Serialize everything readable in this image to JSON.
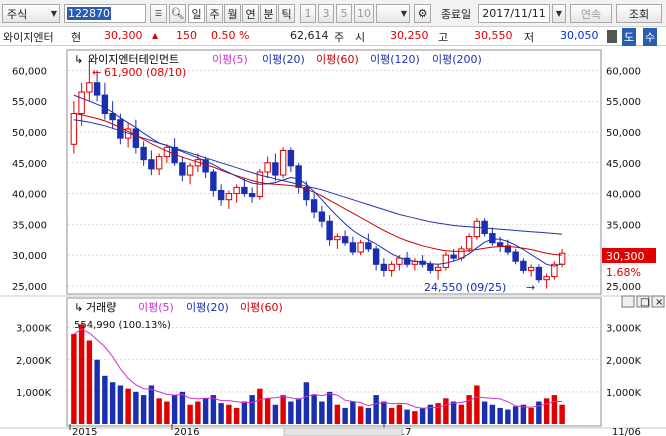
{
  "toolbar": {
    "market": "주식",
    "code": "122870",
    "period_buttons": [
      "일",
      "주",
      "월",
      "연",
      "분",
      "틱"
    ],
    "interval_buttons": [
      "1",
      "3",
      "5",
      "10"
    ],
    "close_price_label": "종료일",
    "date": "2017/11/11",
    "continuous_label": "연속",
    "search_label": "조회"
  },
  "quote": {
    "name": "와이지엔터",
    "current_label": "현",
    "price": "30,300",
    "change": "150",
    "change_pct": "0.50 %",
    "volume": "62,614",
    "volume_unit": "주",
    "open_label": "시",
    "open": "30,250",
    "high_label": "고",
    "high": "30,550",
    "low_label": "저",
    "low": "30,050",
    "side_buttons": [
      "도",
      "수"
    ]
  },
  "price_legend": {
    "symbol": "와이지엔터테인먼트",
    "ma5": "이평(5)",
    "ma20": "이평(20)",
    "ma60": "이평(60)",
    "ma120": "이평(120)",
    "ma200": "이평(200)"
  },
  "volume_legend": {
    "title": "거래량",
    "ma5": "이평(5)",
    "ma20": "이평(20)",
    "ma60": "이평(60)",
    "max_note": "554,990 (100.13%)"
  },
  "annotations": {
    "high": "61,900 (08/10)",
    "low": "24,550 (09/25)",
    "last_price": "30,300",
    "last_change": "1.68%"
  },
  "colors": {
    "up": "#e00000",
    "down": "#1a2fb0",
    "ma5": "#cc33cc",
    "ma20": "#1a2fb0",
    "ma60": "#cc0000",
    "ma120": "#2233aa",
    "ma200": "#2233aa"
  },
  "chart_data": {
    "type": "candlestick",
    "price_axis": {
      "ticks": [
        "60,000",
        "55,000",
        "50,000",
        "45,000",
        "40,000",
        "35,000",
        "30,000",
        "25,000"
      ],
      "ylim": [
        24000,
        63000
      ]
    },
    "volume_axis": {
      "ticks": [
        "3,000K",
        "2,000K",
        "1,000K"
      ],
      "ylim": [
        0,
        3300000
      ]
    },
    "x_labels": [
      "2015",
      "2016",
      "2017",
      "11/06"
    ],
    "candles": [
      [
        48000,
        55000,
        46500,
        53000
      ],
      [
        53000,
        58000,
        51000,
        56500
      ],
      [
        56500,
        61900,
        55000,
        58000
      ],
      [
        58000,
        60000,
        55000,
        56000
      ],
      [
        56000,
        58000,
        52000,
        53000
      ],
      [
        53000,
        55000,
        50500,
        52000
      ],
      [
        52000,
        53000,
        48000,
        49000
      ],
      [
        49000,
        51500,
        47500,
        50500
      ],
      [
        50500,
        52000,
        46500,
        47500
      ],
      [
        47500,
        48500,
        44500,
        45500
      ],
      [
        45500,
        47000,
        43000,
        44000
      ],
      [
        44000,
        46500,
        43000,
        46000
      ],
      [
        46000,
        48000,
        45000,
        47500
      ],
      [
        47500,
        49000,
        44500,
        45000
      ],
      [
        45000,
        46000,
        42000,
        43000
      ],
      [
        43000,
        45000,
        41500,
        44500
      ],
      [
        44500,
        46500,
        43500,
        45500
      ],
      [
        45500,
        46000,
        42500,
        43500
      ],
      [
        43500,
        44000,
        39500,
        40500
      ],
      [
        40500,
        41500,
        38000,
        39000
      ],
      [
        39000,
        40500,
        37500,
        40000
      ],
      [
        40000,
        41500,
        38500,
        41000
      ],
      [
        41000,
        42500,
        39500,
        40000
      ],
      [
        40000,
        41000,
        38500,
        39500
      ],
      [
        39500,
        44000,
        39000,
        43500
      ],
      [
        43500,
        46000,
        42500,
        45000
      ],
      [
        45000,
        46500,
        42000,
        43000
      ],
      [
        43000,
        47500,
        42500,
        47000
      ],
      [
        47000,
        47500,
        43500,
        44500
      ],
      [
        44500,
        45000,
        40000,
        41000
      ],
      [
        41000,
        42000,
        38000,
        39000
      ],
      [
        39000,
        40000,
        36000,
        37000
      ],
      [
        37000,
        38000,
        34500,
        35500
      ],
      [
        35500,
        36500,
        31500,
        32500
      ],
      [
        32500,
        33500,
        31000,
        33000
      ],
      [
        33000,
        34000,
        31500,
        32000
      ],
      [
        32000,
        33000,
        30000,
        30500
      ],
      [
        30500,
        32500,
        30000,
        32000
      ],
      [
        32000,
        33500,
        30500,
        31000
      ],
      [
        31000,
        31500,
        27500,
        28500
      ],
      [
        28500,
        29500,
        26500,
        27500
      ],
      [
        27500,
        29000,
        26500,
        28500
      ],
      [
        28500,
        30000,
        27500,
        29500
      ],
      [
        29500,
        30500,
        28000,
        28500
      ],
      [
        28500,
        29500,
        27500,
        29000
      ],
      [
        29000,
        30000,
        28000,
        28500
      ],
      [
        28500,
        29000,
        27000,
        27500
      ],
      [
        27500,
        28500,
        26000,
        28000
      ],
      [
        28000,
        30500,
        27500,
        30000
      ],
      [
        30000,
        31000,
        29000,
        29500
      ],
      [
        29500,
        31500,
        29000,
        31000
      ],
      [
        31000,
        33500,
        30500,
        33000
      ],
      [
        33000,
        36000,
        32500,
        35500
      ],
      [
        35500,
        36000,
        33000,
        33500
      ],
      [
        33500,
        34500,
        31500,
        32000
      ],
      [
        32000,
        33000,
        30500,
        31500
      ],
      [
        31500,
        32500,
        30000,
        30500
      ],
      [
        30500,
        31000,
        28500,
        29000
      ],
      [
        29000,
        29500,
        27000,
        27500
      ],
      [
        27500,
        28500,
        26500,
        28000
      ],
      [
        28000,
        28500,
        25500,
        26000
      ],
      [
        26000,
        27000,
        24550,
        26500
      ],
      [
        26500,
        29000,
        26000,
        28500
      ],
      [
        28500,
        31000,
        28000,
        30300
      ]
    ],
    "volumes": [
      2800000,
      3100000,
      2600000,
      2000000,
      1500000,
      1300000,
      1200000,
      1100000,
      1000000,
      900000,
      1200000,
      800000,
      700000,
      900000,
      1000000,
      600000,
      700000,
      800000,
      900000,
      650000,
      600000,
      500000,
      700000,
      900000,
      1100000,
      800000,
      600000,
      900000,
      700000,
      800000,
      1300000,
      900000,
      700000,
      1000000,
      600000,
      500000,
      700000,
      550000,
      500000,
      900000,
      700000,
      500000,
      600000,
      450000,
      400000,
      500000,
      600000,
      650000,
      800000,
      700000,
      600000,
      900000,
      1200000,
      700000,
      600000,
      500000,
      450000,
      550000,
      600000,
      500000,
      700000,
      800000,
      900000,
      600000
    ],
    "ma20": [
      56000,
      55500,
      55000,
      54500,
      54000,
      53200,
      52300,
      51500,
      50700,
      49800,
      49000,
      48200,
      47800,
      47300,
      46800,
      46300,
      45800,
      45300,
      44700,
      44000,
      43400,
      42800,
      42200,
      41700,
      41500,
      41600,
      41800,
      42200,
      42600,
      42400,
      41500,
      40300,
      39000,
      37600,
      36300,
      35100,
      34000,
      33200,
      32500,
      31800,
      31000,
      30200,
      29600,
      29200,
      29000,
      28800,
      28600,
      28500,
      28700,
      29000,
      29500,
      30200,
      31200,
      32100,
      32600,
      32600,
      32200,
      31600,
      30900,
      30100,
      29300,
      28500,
      28200,
      28600
    ],
    "ma60": [
      53000,
      52800,
      52500,
      52200,
      51800,
      51300,
      50700,
      50100,
      49500,
      48800,
      48100,
      47500,
      46900,
      46400,
      45900,
      45500,
      45100,
      44700,
      44300,
      43800,
      43300,
      42900,
      42500,
      42100,
      41800,
      41600,
      41500,
      41400,
      41300,
      41100,
      40700,
      40200,
      39600,
      38900,
      38200,
      37500,
      36800,
      36100,
      35400,
      34700,
      34000,
      33400,
      32800,
      32300,
      31900,
      31500,
      31200,
      30900,
      30700,
      30600,
      30600,
      30700,
      30900,
      31100,
      31300,
      31400,
      31400,
      31300,
      31100,
      30900,
      30600,
      30300,
      30100,
      30000
    ],
    "ma120": [
      52000,
      51800,
      51600,
      51300,
      51000,
      50600,
      50200,
      49800,
      49400,
      49000,
      48600,
      48200,
      47800,
      47400,
      47000,
      46600,
      46200,
      45800,
      45400,
      45000,
      44600,
      44200,
      43800,
      43400,
      43000,
      42700,
      42400,
      42100,
      41800,
      41500,
      41200,
      40900,
      40600,
      40200,
      39800,
      39400,
      39000,
      38600,
      38200,
      37800,
      37400,
      37000,
      36600,
      36300,
      36000,
      35700,
      35400,
      35200,
      35000,
      34800,
      34700,
      34600,
      34500,
      34400,
      34300,
      34200,
      34100,
      34000,
      33900,
      33800,
      33700,
      33600,
      33500,
      33400
    ]
  }
}
